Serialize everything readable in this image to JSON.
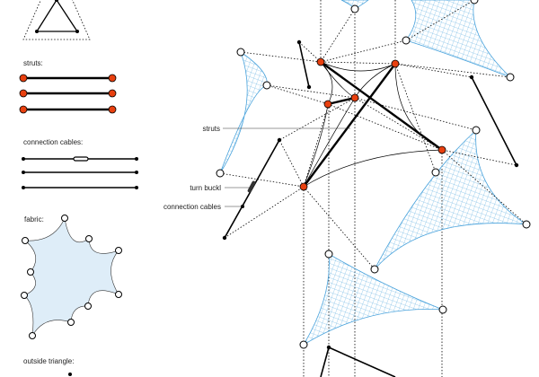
{
  "legend": {
    "struts_label": "struts:",
    "cables_label": "connection cables:",
    "fabric_label": "fabric:",
    "outside_triangle_label": "outside triangle:"
  },
  "callouts": {
    "struts": "struts",
    "turn_buckle": "turn buckl",
    "connection_cables": "connection cables"
  },
  "colors": {
    "strut_node": "#e8400f",
    "fabric_mesh": "#4aa3dc",
    "fabric_fill": "#deedf8"
  }
}
